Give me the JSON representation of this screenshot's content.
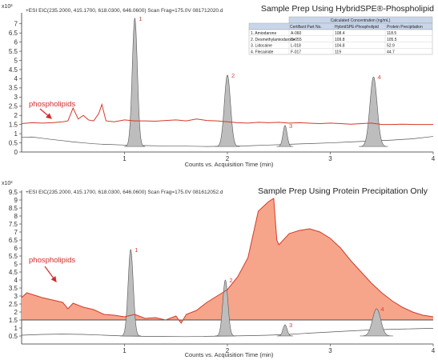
{
  "colors": {
    "phospholipid_line": "#d43a2a",
    "phospholipid_fill": "#f6a58a",
    "analyte_fill": "#bdbdbd",
    "analyte_line": "#555555",
    "peak_label": "#d44040",
    "axis": "#333333",
    "table_header_fill": "#c9d6ea"
  },
  "chart_data": [
    {
      "type": "area",
      "title": "Sample Prep Using HybridSPE®-Phospholipid",
      "header": "+ESI EIC(235.2000, 415.1700, 618.0300, 646.0600) Scan Frag=175.0V 081712020.d",
      "magnitude": "x10²",
      "xlabel": "Counts vs. Acquisition Time (min)",
      "xlim": [
        0,
        4
      ],
      "ylim": [
        0,
        7.6
      ],
      "yticks": [
        0,
        0.5,
        1,
        1.5,
        2,
        2.5,
        3,
        3.5,
        4,
        4.5,
        5,
        5.5,
        6,
        6.5,
        7
      ],
      "ytick_labels": [
        "0",
        "0.5",
        "1",
        "1.5",
        "2",
        "2.5",
        "3",
        "3.5",
        "4",
        "4.5",
        "5",
        "5.5",
        "6",
        "6.5",
        "7"
      ],
      "xticks": [
        1,
        2,
        3,
        4
      ],
      "xtick_labels": [
        "1",
        "2",
        "3",
        "4"
      ],
      "annotation": "phospholipids",
      "series": [
        {
          "key": "phospholipids",
          "x": [
            0.0,
            0.1,
            0.2,
            0.3,
            0.4,
            0.45,
            0.5,
            0.55,
            0.6,
            0.65,
            0.7,
            0.75,
            0.78,
            0.82,
            0.9,
            1.0,
            1.1,
            1.2,
            1.3,
            1.4,
            1.5,
            1.6,
            1.7,
            1.8,
            1.9,
            2.0,
            2.1,
            2.2,
            2.3,
            2.4,
            2.5,
            2.6,
            2.7,
            2.8,
            2.9,
            3.0,
            3.1,
            3.2,
            3.3,
            3.4,
            3.5,
            3.6,
            3.7,
            3.8,
            3.9,
            4.0
          ],
          "y": [
            1.55,
            1.6,
            1.58,
            1.6,
            1.65,
            1.7,
            2.4,
            1.8,
            2.0,
            1.75,
            1.7,
            2.1,
            2.6,
            1.7,
            1.65,
            1.75,
            1.7,
            1.7,
            1.68,
            1.72,
            1.75,
            1.7,
            1.8,
            1.72,
            1.7,
            1.65,
            1.6,
            1.58,
            1.62,
            1.6,
            1.62,
            1.58,
            1.6,
            1.57,
            1.55,
            1.58,
            1.55,
            1.52,
            1.55,
            1.58,
            1.5,
            1.5,
            1.52,
            1.5,
            1.5,
            1.5
          ]
        },
        {
          "key": "baseline",
          "x": [
            0.0,
            0.1,
            0.2,
            0.3,
            0.4,
            0.5,
            0.6,
            0.7,
            0.8,
            1.0,
            1.2,
            1.4,
            1.6,
            1.8,
            2.0,
            2.2,
            2.4,
            2.6,
            2.8,
            3.0,
            3.2,
            3.4,
            3.6,
            3.8,
            4.0
          ],
          "y": [
            0.8,
            0.82,
            0.75,
            0.68,
            0.62,
            0.55,
            0.5,
            0.45,
            0.42,
            0.38,
            0.35,
            0.33,
            0.32,
            0.3,
            0.32,
            0.34,
            0.38,
            0.42,
            0.46,
            0.5,
            0.55,
            0.6,
            0.65,
            0.72,
            0.85
          ]
        }
      ],
      "peaks": [
        {
          "label": "1",
          "rt": 1.1,
          "height": 7.3,
          "width": 0.025
        },
        {
          "label": "2",
          "rt": 2.0,
          "height": 4.2,
          "width": 0.03
        },
        {
          "label": "3",
          "rt": 2.56,
          "height": 1.45,
          "width": 0.02
        },
        {
          "label": "4",
          "rt": 3.42,
          "height": 4.1,
          "width": 0.035
        }
      ],
      "table": {
        "header_span": "Calculated Concentration (ng/mL)",
        "columns": [
          "",
          "Certifiant Part No.",
          "HybridSPE-Phospholipid",
          "Protein Precipitation"
        ],
        "rows": [
          [
            "1. Amiodarone",
            "A-060",
            "108.4",
            "118.5"
          ],
          [
            "2. Desmethylamiodarone",
            "D-055",
            "109.8",
            "105.5"
          ],
          [
            "3. Lidocaine",
            "L-018",
            "104.8",
            "52.9"
          ],
          [
            "4. Flecainide",
            "F-017",
            "119",
            "44.7"
          ]
        ]
      }
    },
    {
      "type": "area",
      "title": "Sample Prep Using Protein Precipitation Only",
      "header": "+ESI EIC(235.2000, 415.1700, 618.0300, 646.0600) Scan Frag=175.0V 081612052.d",
      "magnitude": "x10²",
      "xlabel": "Counts vs. Acquisition Time (min)",
      "xlim": [
        0,
        4
      ],
      "ylim": [
        0,
        9.6
      ],
      "yticks": [
        0.5,
        1,
        1.5,
        2,
        2.5,
        3,
        3.5,
        4,
        4.5,
        5,
        5.5,
        6,
        6.5,
        7,
        7.5,
        8,
        8.5,
        9,
        9.5
      ],
      "ytick_labels": [
        "0.5",
        "1",
        "1.5",
        "2",
        "2.5",
        "3",
        "3.5",
        "4",
        "4.5",
        "5",
        "5.5",
        "6",
        "6.5",
        "7",
        "7.5",
        "8",
        "8.5",
        "9",
        "9.5"
      ],
      "xticks": [
        1,
        2,
        3,
        4
      ],
      "xtick_labels": [
        "1",
        "2",
        "3",
        "4"
      ],
      "annotation": "phospholipids",
      "series": [
        {
          "key": "phospholipids",
          "x": [
            0.0,
            0.05,
            0.1,
            0.2,
            0.3,
            0.4,
            0.45,
            0.5,
            0.6,
            0.7,
            0.8,
            0.9,
            1.0,
            1.1,
            1.2,
            1.3,
            1.4,
            1.5,
            1.55,
            1.6,
            1.7,
            1.8,
            1.9,
            2.0,
            2.1,
            2.2,
            2.3,
            2.35,
            2.4,
            2.45,
            2.48,
            2.5,
            2.6,
            2.7,
            2.8,
            2.9,
            3.0,
            3.1,
            3.2,
            3.3,
            3.4,
            3.5,
            3.6,
            3.7,
            3.8,
            3.9,
            4.0
          ],
          "y": [
            2.9,
            3.2,
            3.1,
            2.9,
            2.75,
            2.6,
            2.2,
            2.55,
            2.3,
            2.15,
            1.85,
            1.8,
            1.7,
            1.85,
            1.6,
            1.65,
            1.5,
            1.75,
            1.3,
            1.85,
            2.1,
            2.6,
            3.0,
            3.4,
            4.2,
            5.4,
            8.3,
            8.6,
            8.9,
            9.1,
            6.5,
            6.2,
            6.9,
            7.1,
            7.2,
            7.0,
            6.6,
            6.0,
            5.2,
            4.5,
            3.8,
            3.2,
            2.7,
            2.3,
            2.0,
            1.8,
            1.7
          ]
        },
        {
          "key": "baseline",
          "x": [
            0.0,
            0.2,
            0.4,
            0.6,
            0.8,
            1.0,
            1.2,
            1.4,
            1.6,
            1.8,
            2.0,
            2.2,
            2.4,
            2.6,
            2.8,
            3.0,
            3.2,
            3.4,
            3.6,
            3.8,
            4.0
          ],
          "y": [
            0.55,
            0.6,
            0.62,
            0.6,
            0.55,
            0.5,
            0.48,
            0.47,
            0.46,
            0.48,
            0.5,
            0.52,
            0.55,
            0.6,
            0.68,
            0.75,
            0.82,
            0.88,
            0.92,
            0.95,
            0.98
          ]
        }
      ],
      "peaks": [
        {
          "label": "1",
          "rt": 1.06,
          "height": 5.9,
          "width": 0.025
        },
        {
          "label": "2",
          "rt": 1.98,
          "height": 4.0,
          "width": 0.025
        },
        {
          "label": "3",
          "rt": 2.56,
          "height": 1.2,
          "width": 0.02
        },
        {
          "label": "4",
          "rt": 3.45,
          "height": 2.2,
          "width": 0.04
        }
      ],
      "fill_floor": 1.5
    }
  ]
}
